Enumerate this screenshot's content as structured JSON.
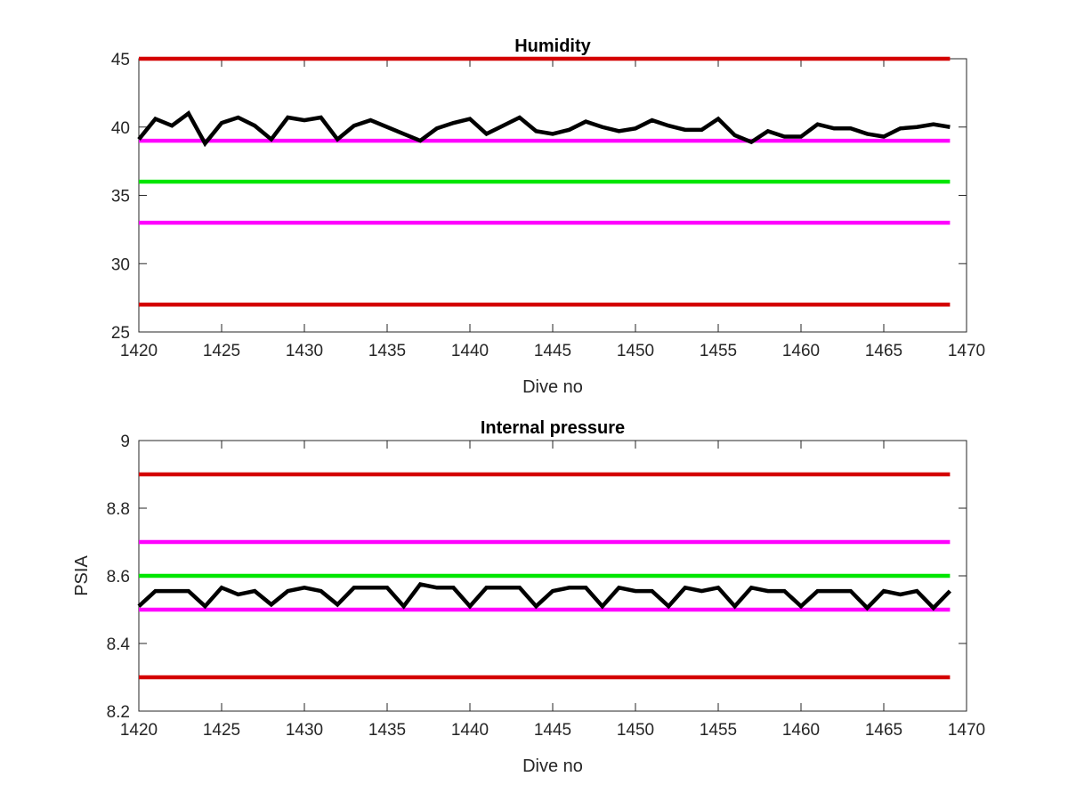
{
  "chart_data": [
    {
      "type": "line",
      "title": "Humidity",
      "xlabel": "Dive no",
      "ylabel": "",
      "xlim": [
        1420,
        1470
      ],
      "ylim": [
        25,
        45
      ],
      "xticks": [
        1420,
        1425,
        1430,
        1435,
        1440,
        1445,
        1450,
        1455,
        1460,
        1465,
        1470
      ],
      "yticks": [
        25,
        30,
        35,
        40,
        45
      ],
      "xtick_labels": [
        "1420",
        "1425",
        "1430",
        "1435",
        "1440",
        "1445",
        "1450",
        "1455",
        "1460",
        "1465",
        "1470"
      ],
      "ytick_labels": [
        "25",
        "30",
        "35",
        "40",
        "45"
      ],
      "grid": false,
      "legend": null,
      "reference_lines": [
        {
          "y": 45,
          "color": "#d40000"
        },
        {
          "y": 39,
          "color": "#ff00ff"
        },
        {
          "y": 36,
          "color": "#00e600"
        },
        {
          "y": 33,
          "color": "#ff00ff"
        },
        {
          "y": 27,
          "color": "#d40000"
        }
      ],
      "series": [
        {
          "color": "#000000",
          "x": [
            1420,
            1421,
            1422,
            1423,
            1424,
            1425,
            1426,
            1427,
            1428,
            1429,
            1430,
            1431,
            1432,
            1433,
            1434,
            1435,
            1436,
            1437,
            1438,
            1439,
            1440,
            1441,
            1442,
            1443,
            1444,
            1445,
            1446,
            1447,
            1448,
            1449,
            1450,
            1451,
            1452,
            1453,
            1454,
            1455,
            1456,
            1457,
            1458,
            1459,
            1460,
            1461,
            1462,
            1463,
            1464,
            1465,
            1466,
            1467,
            1468,
            1469
          ],
          "y": [
            39.1,
            40.6,
            40.1,
            41.0,
            38.8,
            40.3,
            40.7,
            40.1,
            39.1,
            40.7,
            40.5,
            40.7,
            39.1,
            40.1,
            40.5,
            40.0,
            39.5,
            39.0,
            39.9,
            40.3,
            40.6,
            39.5,
            40.1,
            40.7,
            39.7,
            39.5,
            39.8,
            40.4,
            40.0,
            39.7,
            39.9,
            40.5,
            40.1,
            39.8,
            39.8,
            40.6,
            39.4,
            38.9,
            39.7,
            39.3,
            39.3,
            40.2,
            39.9,
            39.9,
            39.5,
            39.3,
            39.9,
            40.0,
            40.2,
            40.0
          ]
        }
      ]
    },
    {
      "type": "line",
      "title": "Internal pressure",
      "xlabel": "Dive no",
      "ylabel": "PSIA",
      "xlim": [
        1420,
        1470
      ],
      "ylim": [
        8.2,
        9.0
      ],
      "xticks": [
        1420,
        1425,
        1430,
        1435,
        1440,
        1445,
        1450,
        1455,
        1460,
        1465,
        1470
      ],
      "yticks": [
        8.2,
        8.4,
        8.6,
        8.8,
        9.0
      ],
      "xtick_labels": [
        "1420",
        "1425",
        "1430",
        "1435",
        "1440",
        "1445",
        "1450",
        "1455",
        "1460",
        "1465",
        "1470"
      ],
      "ytick_labels": [
        "8.2",
        "8.4",
        "8.6",
        "8.8",
        "9"
      ],
      "grid": false,
      "legend": null,
      "reference_lines": [
        {
          "y": 8.9,
          "color": "#d40000"
        },
        {
          "y": 8.7,
          "color": "#ff00ff"
        },
        {
          "y": 8.6,
          "color": "#00e600"
        },
        {
          "y": 8.5,
          "color": "#ff00ff"
        },
        {
          "y": 8.3,
          "color": "#d40000"
        }
      ],
      "series": [
        {
          "color": "#000000",
          "x": [
            1420,
            1421,
            1422,
            1423,
            1424,
            1425,
            1426,
            1427,
            1428,
            1429,
            1430,
            1431,
            1432,
            1433,
            1434,
            1435,
            1436,
            1437,
            1438,
            1439,
            1440,
            1441,
            1442,
            1443,
            1444,
            1445,
            1446,
            1447,
            1448,
            1449,
            1450,
            1451,
            1452,
            1453,
            1454,
            1455,
            1456,
            1457,
            1458,
            1459,
            1460,
            1461,
            1462,
            1463,
            1464,
            1465,
            1466,
            1467,
            1468,
            1469
          ],
          "y": [
            8.51,
            8.555,
            8.555,
            8.555,
            8.51,
            8.565,
            8.545,
            8.555,
            8.515,
            8.555,
            8.565,
            8.555,
            8.515,
            8.565,
            8.565,
            8.565,
            8.51,
            8.575,
            8.565,
            8.565,
            8.51,
            8.565,
            8.565,
            8.565,
            8.51,
            8.555,
            8.565,
            8.565,
            8.51,
            8.565,
            8.555,
            8.555,
            8.51,
            8.565,
            8.555,
            8.565,
            8.51,
            8.565,
            8.555,
            8.555,
            8.51,
            8.555,
            8.555,
            8.555,
            8.505,
            8.555,
            8.545,
            8.555,
            8.505,
            8.555
          ]
        }
      ]
    }
  ]
}
